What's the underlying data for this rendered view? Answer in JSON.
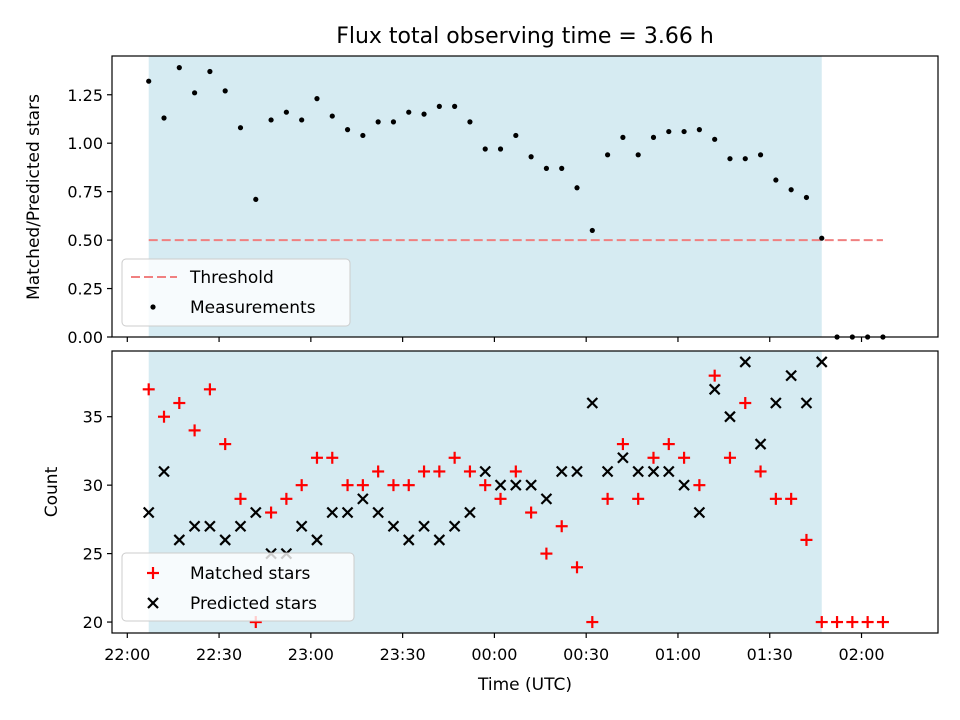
{
  "figure": {
    "title": "Flux total observing time = 3.66 h",
    "xlabel": "Time (UTC)"
  },
  "colors": {
    "shade": "#add8e6",
    "threshold": "#f08080",
    "matched": "#ff0000",
    "predicted": "#000000",
    "measurement": "#000000"
  },
  "chart_data": [
    {
      "type": "scatter",
      "panel": "top",
      "ylabel": "Matched/Predicted stars",
      "ylim": [
        0,
        1.45
      ],
      "yticks": [
        0.0,
        0.25,
        0.5,
        0.75,
        1.0,
        1.25
      ],
      "ytick_labels": [
        "0.00",
        "0.25",
        "0.50",
        "0.75",
        "1.00",
        "1.25"
      ],
      "xlim": [
        "21:55",
        "02:25"
      ],
      "xticks": [
        "22:00",
        "22:30",
        "23:00",
        "23:30",
        "00:00",
        "00:30",
        "01:00",
        "01:30",
        "02:00"
      ],
      "shaded_interval": [
        "22:07",
        "01:47"
      ],
      "threshold": {
        "name": "Threshold",
        "y": 0.5,
        "x": [
          "22:07",
          "02:07"
        ]
      },
      "legend": {
        "position": "lower-left",
        "entries": [
          "Threshold",
          "Measurements"
        ]
      },
      "series": [
        {
          "name": "Measurements",
          "marker": "dot",
          "x": [
            "22:07",
            "22:12",
            "22:17",
            "22:22",
            "22:27",
            "22:32",
            "22:37",
            "22:42",
            "22:47",
            "22:52",
            "22:57",
            "23:02",
            "23:07",
            "23:12",
            "23:17",
            "23:22",
            "23:27",
            "23:32",
            "23:37",
            "23:42",
            "23:47",
            "23:52",
            "23:57",
            "00:02",
            "00:07",
            "00:12",
            "00:17",
            "00:22",
            "00:27",
            "00:32",
            "00:37",
            "00:42",
            "00:47",
            "00:52",
            "00:57",
            "01:02",
            "01:07",
            "01:12",
            "01:17",
            "01:22",
            "01:27",
            "01:32",
            "01:37",
            "01:42",
            "01:47",
            "01:52",
            "01:57",
            "02:02",
            "02:07"
          ],
          "y": [
            1.32,
            1.13,
            1.39,
            1.26,
            1.37,
            1.27,
            1.08,
            0.71,
            1.12,
            1.16,
            1.12,
            1.23,
            1.14,
            1.07,
            1.04,
            1.11,
            1.11,
            1.16,
            1.15,
            1.19,
            1.19,
            1.11,
            0.97,
            0.97,
            1.04,
            0.93,
            0.87,
            0.87,
            0.77,
            0.55,
            0.94,
            1.03,
            0.94,
            1.03,
            1.06,
            1.06,
            1.07,
            1.02,
            0.92,
            0.92,
            0.94,
            0.81,
            0.76,
            0.72,
            0.51,
            0,
            0,
            0,
            0
          ]
        }
      ]
    },
    {
      "type": "scatter",
      "panel": "bottom",
      "ylabel": "Count",
      "xlabel": "Time (UTC)",
      "ylim": [
        19.2,
        39.8
      ],
      "yticks": [
        20,
        25,
        30,
        35
      ],
      "ytick_labels": [
        "20",
        "25",
        "30",
        "35"
      ],
      "xlim": [
        "21:55",
        "02:25"
      ],
      "xticks": [
        "22:00",
        "22:30",
        "23:00",
        "23:30",
        "00:00",
        "00:30",
        "01:00",
        "01:30",
        "02:00"
      ],
      "xtick_labels": [
        "22:00",
        "22:30",
        "23:00",
        "23:30",
        "00:00",
        "00:30",
        "01:00",
        "01:30",
        "02:00"
      ],
      "shaded_interval": [
        "22:07",
        "01:47"
      ],
      "legend": {
        "position": "lower-left",
        "entries": [
          "Matched stars",
          "Predicted stars"
        ]
      },
      "series": [
        {
          "name": "Matched stars",
          "marker": "plus",
          "x": [
            "22:07",
            "22:12",
            "22:17",
            "22:22",
            "22:27",
            "22:32",
            "22:37",
            "22:42",
            "22:47",
            "22:52",
            "22:57",
            "23:02",
            "23:07",
            "23:12",
            "23:17",
            "23:22",
            "23:27",
            "23:32",
            "23:37",
            "23:42",
            "23:47",
            "23:52",
            "23:57",
            "00:02",
            "00:07",
            "00:12",
            "00:17",
            "00:22",
            "00:27",
            "00:32",
            "00:37",
            "00:42",
            "00:47",
            "00:52",
            "00:57",
            "01:02",
            "01:07",
            "01:12",
            "01:17",
            "01:22",
            "01:27",
            "01:32",
            "01:37",
            "01:42",
            "01:47",
            "01:52",
            "01:57",
            "02:02",
            "02:07"
          ],
          "y": [
            37,
            35,
            36,
            34,
            37,
            33,
            29,
            20,
            28,
            29,
            30,
            32,
            32,
            30,
            30,
            31,
            30,
            30,
            31,
            31,
            32,
            31,
            30,
            29,
            31,
            28,
            25,
            27,
            24,
            20,
            29,
            33,
            29,
            32,
            33,
            32,
            30,
            38,
            32,
            36,
            31,
            29,
            29,
            26,
            20,
            20,
            20,
            20,
            20
          ]
        },
        {
          "name": "Predicted stars",
          "marker": "x",
          "x": [
            "22:07",
            "22:12",
            "22:17",
            "22:22",
            "22:27",
            "22:32",
            "22:37",
            "22:42",
            "22:47",
            "22:52",
            "22:57",
            "23:02",
            "23:07",
            "23:12",
            "23:17",
            "23:22",
            "23:27",
            "23:32",
            "23:37",
            "23:42",
            "23:47",
            "23:52",
            "23:57",
            "00:02",
            "00:07",
            "00:12",
            "00:17",
            "00:22",
            "00:27",
            "00:32",
            "00:37",
            "00:42",
            "00:47",
            "00:52",
            "00:57",
            "01:02",
            "01:07",
            "01:12",
            "01:17",
            "01:22",
            "01:27",
            "01:32",
            "01:37",
            "01:42",
            "01:47"
          ],
          "y": [
            28,
            31,
            26,
            27,
            27,
            26,
            27,
            28,
            25,
            25,
            27,
            26,
            28,
            28,
            29,
            28,
            27,
            26,
            27,
            26,
            27,
            28,
            31,
            30,
            30,
            30,
            29,
            31,
            31,
            36,
            31,
            32,
            31,
            31,
            31,
            30,
            28,
            37,
            35,
            39,
            33,
            36,
            38,
            36,
            39
          ]
        }
      ]
    }
  ]
}
